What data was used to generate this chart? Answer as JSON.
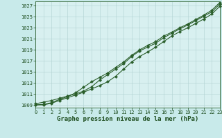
{
  "title": "Graphe pression niveau de la mer (hPa)",
  "background_color": "#c8eaea",
  "plot_bg_color": "#d8f0f0",
  "grid_color": "#b0d0d0",
  "line_color": "#2a5e2a",
  "x_values": [
    0,
    1,
    2,
    3,
    4,
    5,
    6,
    7,
    8,
    9,
    10,
    11,
    12,
    13,
    14,
    15,
    16,
    17,
    18,
    19,
    20,
    21,
    22,
    23
  ],
  "line1": [
    1009.2,
    1009.5,
    1009.8,
    1010.2,
    1010.6,
    1011.0,
    1011.5,
    1012.3,
    1013.5,
    1014.5,
    1015.5,
    1016.5,
    1017.8,
    1018.8,
    1019.5,
    1020.2,
    1021.2,
    1022.0,
    1022.8,
    1023.5,
    1024.3,
    1025.1,
    1025.9,
    1027.3
  ],
  "line2": [
    1009.0,
    1009.0,
    1009.3,
    1009.8,
    1010.3,
    1010.8,
    1011.3,
    1011.9,
    1012.5,
    1013.2,
    1014.2,
    1015.5,
    1016.8,
    1017.8,
    1018.6,
    1019.5,
    1020.5,
    1021.5,
    1022.3,
    1023.0,
    1023.8,
    1024.6,
    1025.5,
    1026.9
  ],
  "line3": [
    1009.0,
    1009.1,
    1009.4,
    1010.0,
    1010.5,
    1011.2,
    1012.2,
    1013.2,
    1014.0,
    1014.8,
    1015.8,
    1016.8,
    1018.0,
    1019.0,
    1019.8,
    1020.5,
    1021.5,
    1022.2,
    1023.0,
    1023.7,
    1024.5,
    1025.3,
    1026.2,
    1027.6
  ],
  "ylim": [
    1008.5,
    1027.8
  ],
  "yticks": [
    1009,
    1011,
    1013,
    1015,
    1017,
    1019,
    1021,
    1023,
    1025,
    1027
  ],
  "xlim": [
    0,
    23
  ],
  "xticks": [
    0,
    1,
    2,
    3,
    4,
    5,
    6,
    7,
    8,
    9,
    10,
    11,
    12,
    13,
    14,
    15,
    16,
    17,
    18,
    19,
    20,
    21,
    22,
    23
  ],
  "marker": "D",
  "marker_size": 2.2,
  "line_width": 0.8,
  "title_fontsize": 6.5,
  "tick_fontsize": 5.0,
  "title_color": "#1a4a1a",
  "tick_color": "#1a4a1a",
  "spine_color": "#2a5e2a"
}
